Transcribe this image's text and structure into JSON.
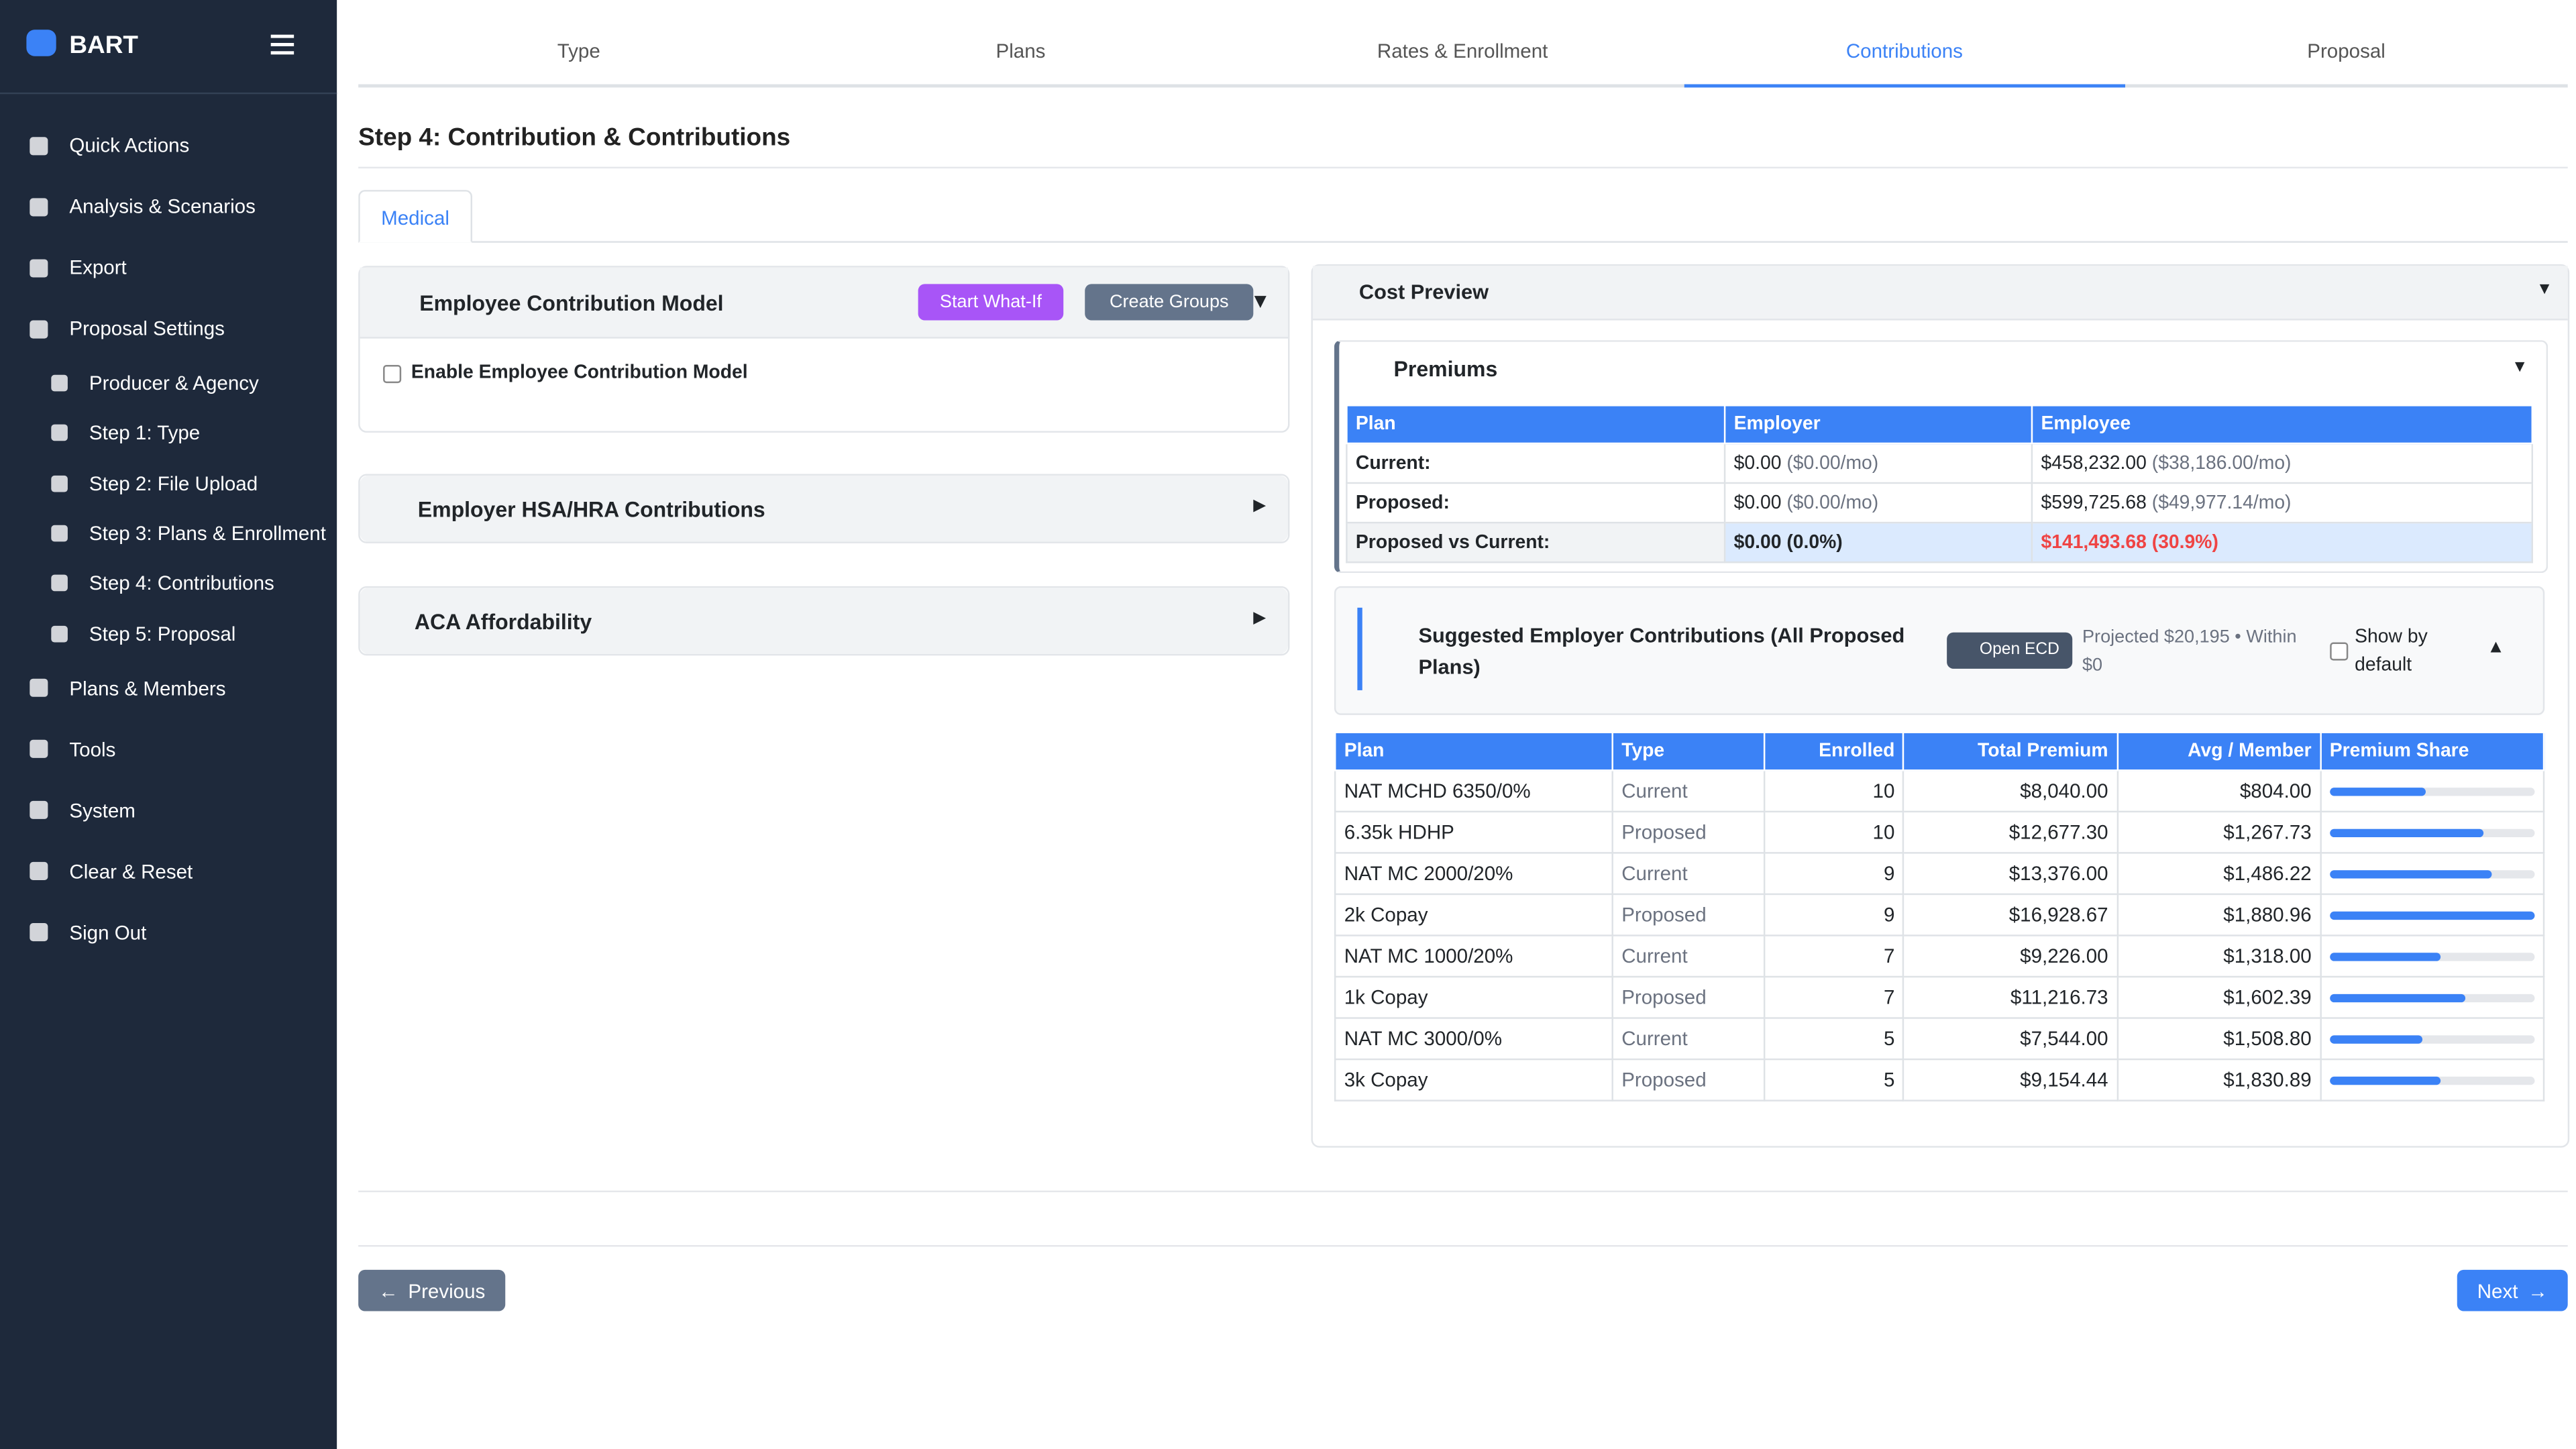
{
  "sidebar": {
    "brand": "BART",
    "items": [
      {
        "label": "Quick Actions"
      },
      {
        "label": "Analysis & Scenarios"
      },
      {
        "label": "Export"
      },
      {
        "label": "Proposal Settings",
        "children": [
          "Producer & Agency",
          "Step 1: Type",
          "Step 2: File Upload",
          "Step 3: Plans & Enrollment",
          "Step 4: Contributions",
          "Step 5: Proposal"
        ]
      },
      {
        "label": "Plans & Members"
      },
      {
        "label": "Tools"
      },
      {
        "label": "System"
      },
      {
        "label": "Clear & Reset"
      },
      {
        "label": "Sign Out"
      }
    ]
  },
  "tabs": [
    "Type",
    "Plans",
    "Rates & Enrollment",
    "Contributions",
    "Proposal"
  ],
  "step_title": "Step 4: Contribution & Contributions",
  "subtab": "Medical",
  "employee_model": {
    "title": "Employee Contribution Model",
    "buttons": [
      "Start What-If",
      "Create Groups"
    ],
    "checkbox": "Enable Employee Contribution Model"
  },
  "hsa_panel": {
    "title": "Employer HSA/HRA Contributions"
  },
  "aca_panel": {
    "title": "ACA Affordability"
  },
  "cost_preview": {
    "title": "Cost Preview",
    "premiums": {
      "title": "Premiums",
      "headers": [
        "Plan",
        "Employer",
        "Employee"
      ],
      "rows": [
        {
          "label": "Current:",
          "employer": [
            "$0.00",
            "($0.00/mo)"
          ],
          "employee": [
            "$458,232.00",
            "($38,186.00/mo)"
          ]
        },
        {
          "label": "Proposed:",
          "employer": [
            "$0.00",
            "($0.00/mo)"
          ],
          "employee": [
            "$599,725.68",
            "($49,977.14/mo)"
          ]
        },
        {
          "label": "Proposed vs Current:",
          "employer": [
            "$0.00 (0.0%)"
          ],
          "employee": [
            "$141,493.68 (30.9%)"
          ]
        }
      ]
    },
    "suggested": {
      "title": "Suggested Employer Contributions (All Proposed Plans)",
      "button": "Open ECD",
      "note": "Projected $20,195 • Within $0",
      "checkbox": "Show by default"
    },
    "plans": {
      "headers": [
        "Plan",
        "Type",
        "Enrolled",
        "Total Premium",
        "Avg / Member",
        "Premium Share"
      ],
      "rows": [
        [
          "NAT MCHD 6350/0%",
          "Current",
          "10",
          "$8,040.00",
          "$804.00"
        ],
        [
          "6.35k HDHP",
          "Proposed",
          "10",
          "$12,677.30",
          "$1,267.73"
        ],
        [
          "NAT MC 2000/20%",
          "Current",
          "9",
          "$13,376.00",
          "$1,486.22"
        ],
        [
          "2k Copay",
          "Proposed",
          "9",
          "$16,928.67",
          "$1,880.96"
        ],
        [
          "NAT MC 1000/20%",
          "Current",
          "7",
          "$9,226.00",
          "$1,318.00"
        ],
        [
          "1k Copay",
          "Proposed",
          "7",
          "$11,216.73",
          "$1,602.39"
        ],
        [
          "NAT MC 3000/0%",
          "Current",
          "5",
          "$7,544.00",
          "$1,508.80"
        ],
        [
          "3k Copay",
          "Proposed",
          "5",
          "$9,154.44",
          "$1,830.89"
        ]
      ],
      "premium_share": [
        47,
        75,
        79,
        100,
        54,
        66,
        45,
        54
      ]
    }
  },
  "nav": {
    "previous": "Previous",
    "next": "Next"
  }
}
